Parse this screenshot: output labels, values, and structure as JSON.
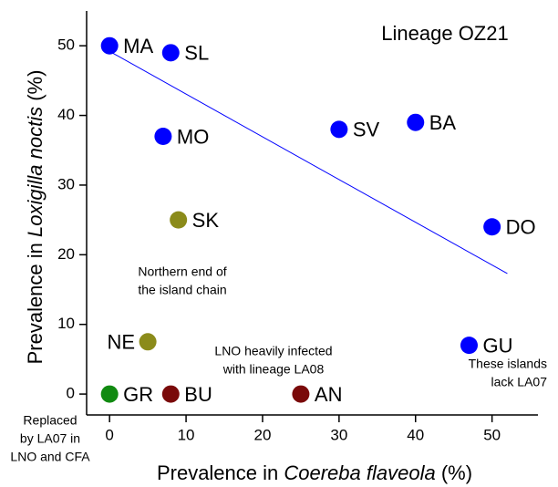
{
  "chart_data": {
    "type": "scatter",
    "title": "Lineage OZ21",
    "xlabel": [
      "Prevalence in ",
      "Coereba flaveola",
      " (%)"
    ],
    "ylabel": [
      "Prevalence in ",
      "Loxigilla noctis",
      " (%)"
    ],
    "xlim": [
      -3,
      56
    ],
    "xticks": [
      0,
      10,
      20,
      30,
      40,
      50
    ],
    "ylim": [
      -3,
      55
    ],
    "yticks": [
      0,
      10,
      20,
      30,
      40,
      50
    ],
    "labels": [
      "MA",
      "SL",
      "MO",
      "SV",
      "BA",
      "DO",
      "SK",
      "NE",
      "GU",
      "GR",
      "BU",
      "AN"
    ],
    "x": [
      0,
      8,
      7,
      30,
      40,
      50,
      9,
      5,
      47,
      0,
      8,
      25
    ],
    "y": [
      50,
      49,
      37,
      38,
      39,
      24,
      25,
      7.5,
      7,
      0,
      0,
      0
    ],
    "colors": [
      "#0000ff",
      "#0000ff",
      "#0000ff",
      "#0000ff",
      "#0000ff",
      "#0000ff",
      "#8b8b1a",
      "#8b8b1a",
      "#0000ff",
      "#118a11",
      "#7a0a0a",
      "#7a0a0a"
    ],
    "trendline": {
      "x": [
        0,
        52
      ],
      "y": [
        49.2,
        17.3
      ],
      "color": "#0000ff"
    },
    "annotations": [
      {
        "lines": [
          "Northern end of",
          "the island chain"
        ],
        "color": "#8b8b1a"
      },
      {
        "lines": [
          "These islands",
          "lack LA07"
        ],
        "color": "#0000ff"
      },
      {
        "lines": [
          "LNO heavily infected",
          "with lineage LA08"
        ],
        "color": "#7a0a0a"
      },
      {
        "lines": [
          "Replaced",
          "by LA07 in",
          "LNO and CFA"
        ],
        "color": "#118a11"
      }
    ],
    "title_color": "#ff0000"
  }
}
